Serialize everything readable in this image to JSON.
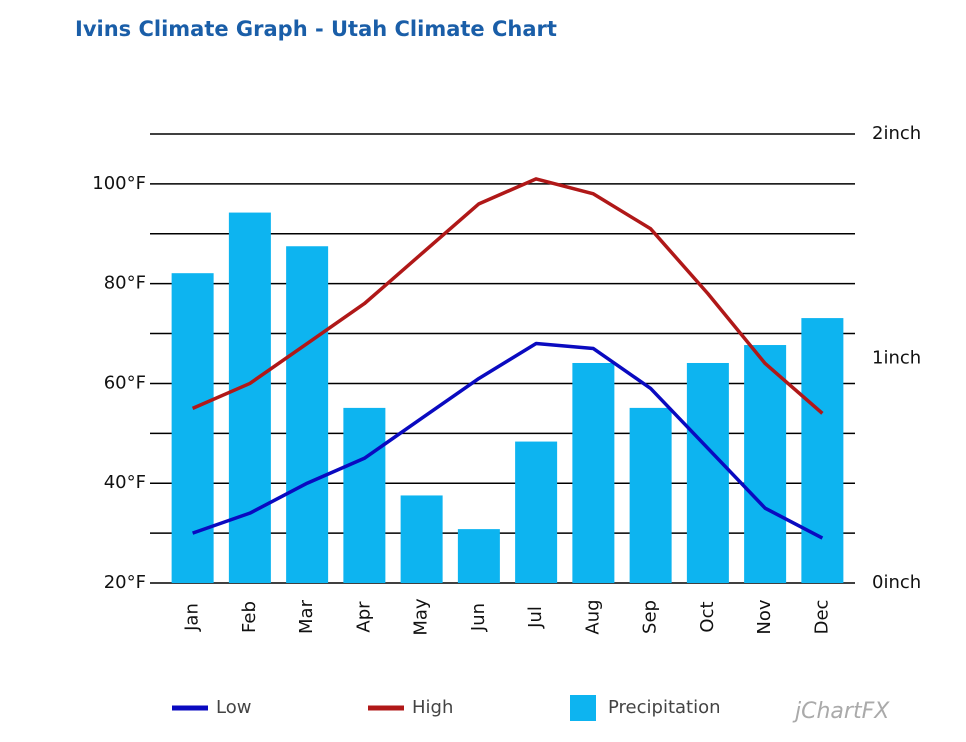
{
  "chart_data": {
    "type": "bar_line",
    "title": "Ivins Climate Graph - Utah Climate Chart",
    "categories": [
      "Jan",
      "Feb",
      "Mar",
      "Apr",
      "May",
      "Jun",
      "Jul",
      "Aug",
      "Sep",
      "Oct",
      "Nov",
      "Dec"
    ],
    "series": [
      {
        "name": "Low",
        "type": "line",
        "color": "#0a0ac0",
        "values": [
          30,
          34,
          40,
          45,
          53,
          61,
          68,
          67,
          59,
          47,
          35,
          29
        ]
      },
      {
        "name": "High",
        "type": "line",
        "color": "#b01818",
        "values": [
          55,
          60,
          68,
          76,
          86,
          96,
          101,
          98,
          91,
          78,
          64,
          54
        ]
      },
      {
        "name": "Precipitation",
        "type": "bar",
        "axis": "y2",
        "color": "#0db4f0",
        "values": [
          1.38,
          1.65,
          1.5,
          0.78,
          0.39,
          0.24,
          0.63,
          0.98,
          0.78,
          0.98,
          1.06,
          1.18
        ]
      }
    ],
    "ylim": [
      20,
      110
    ],
    "yticks": [
      {
        "value": 20,
        "label": "20°F"
      },
      {
        "value": 40,
        "label": "40°F"
      },
      {
        "value": 60,
        "label": "60°F"
      },
      {
        "value": 80,
        "label": "80°F"
      },
      {
        "value": 100,
        "label": "100°F"
      }
    ],
    "y_minor_ticks": [
      30,
      50,
      70,
      90,
      110
    ],
    "y2lim": [
      0,
      2
    ],
    "y2ticks": [
      {
        "value": 0,
        "label": "0inch"
      },
      {
        "value": 1,
        "label": "1inch"
      },
      {
        "value": 2,
        "label": "2inch"
      }
    ],
    "grid": true,
    "legend": "bottom",
    "watermark": "jChartFX"
  }
}
